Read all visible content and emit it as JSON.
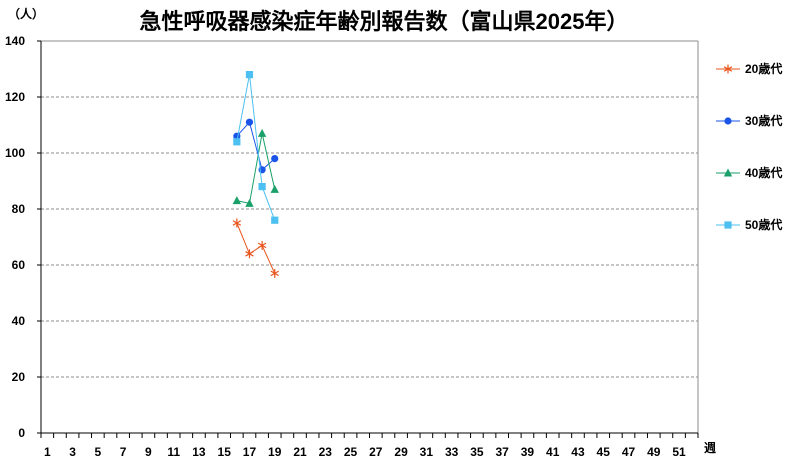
{
  "chart_data": {
    "type": "line",
    "title": "急性呼吸器感染症年齢別報告数（富山県2025年）",
    "ylabel": "（人）",
    "xlabel": "週",
    "ylim": [
      0,
      140
    ],
    "xlim": [
      1,
      52
    ],
    "yticks": [
      0,
      20,
      40,
      60,
      80,
      100,
      120,
      140
    ],
    "xtick_labels": [
      "1",
      "3",
      "5",
      "7",
      "9",
      "11",
      "13",
      "15",
      "17",
      "19",
      "21",
      "23",
      "25",
      "27",
      "29",
      "31",
      "33",
      "35",
      "37",
      "39",
      "41",
      "43",
      "45",
      "47",
      "49",
      "51"
    ],
    "grid": "horizontal dashed",
    "legend_position": "right",
    "series": [
      {
        "name": "20歳代",
        "color": "#e8541c",
        "marker": "asterisk",
        "x": [
          16,
          17,
          18,
          19
        ],
        "values": [
          75,
          64,
          67,
          57
        ]
      },
      {
        "name": "30歳代",
        "color": "#1a55e8",
        "marker": "circle",
        "x": [
          16,
          17,
          18,
          19
        ],
        "values": [
          106,
          111,
          94,
          98
        ]
      },
      {
        "name": "40歳代",
        "color": "#1aa068",
        "marker": "triangle",
        "x": [
          16,
          17,
          18,
          19
        ],
        "values": [
          83,
          82,
          107,
          87
        ]
      },
      {
        "name": "50歳代",
        "color": "#4cc0f0",
        "marker": "square",
        "x": [
          16,
          17,
          18,
          19
        ],
        "values": [
          104,
          128,
          88,
          76
        ]
      }
    ]
  }
}
